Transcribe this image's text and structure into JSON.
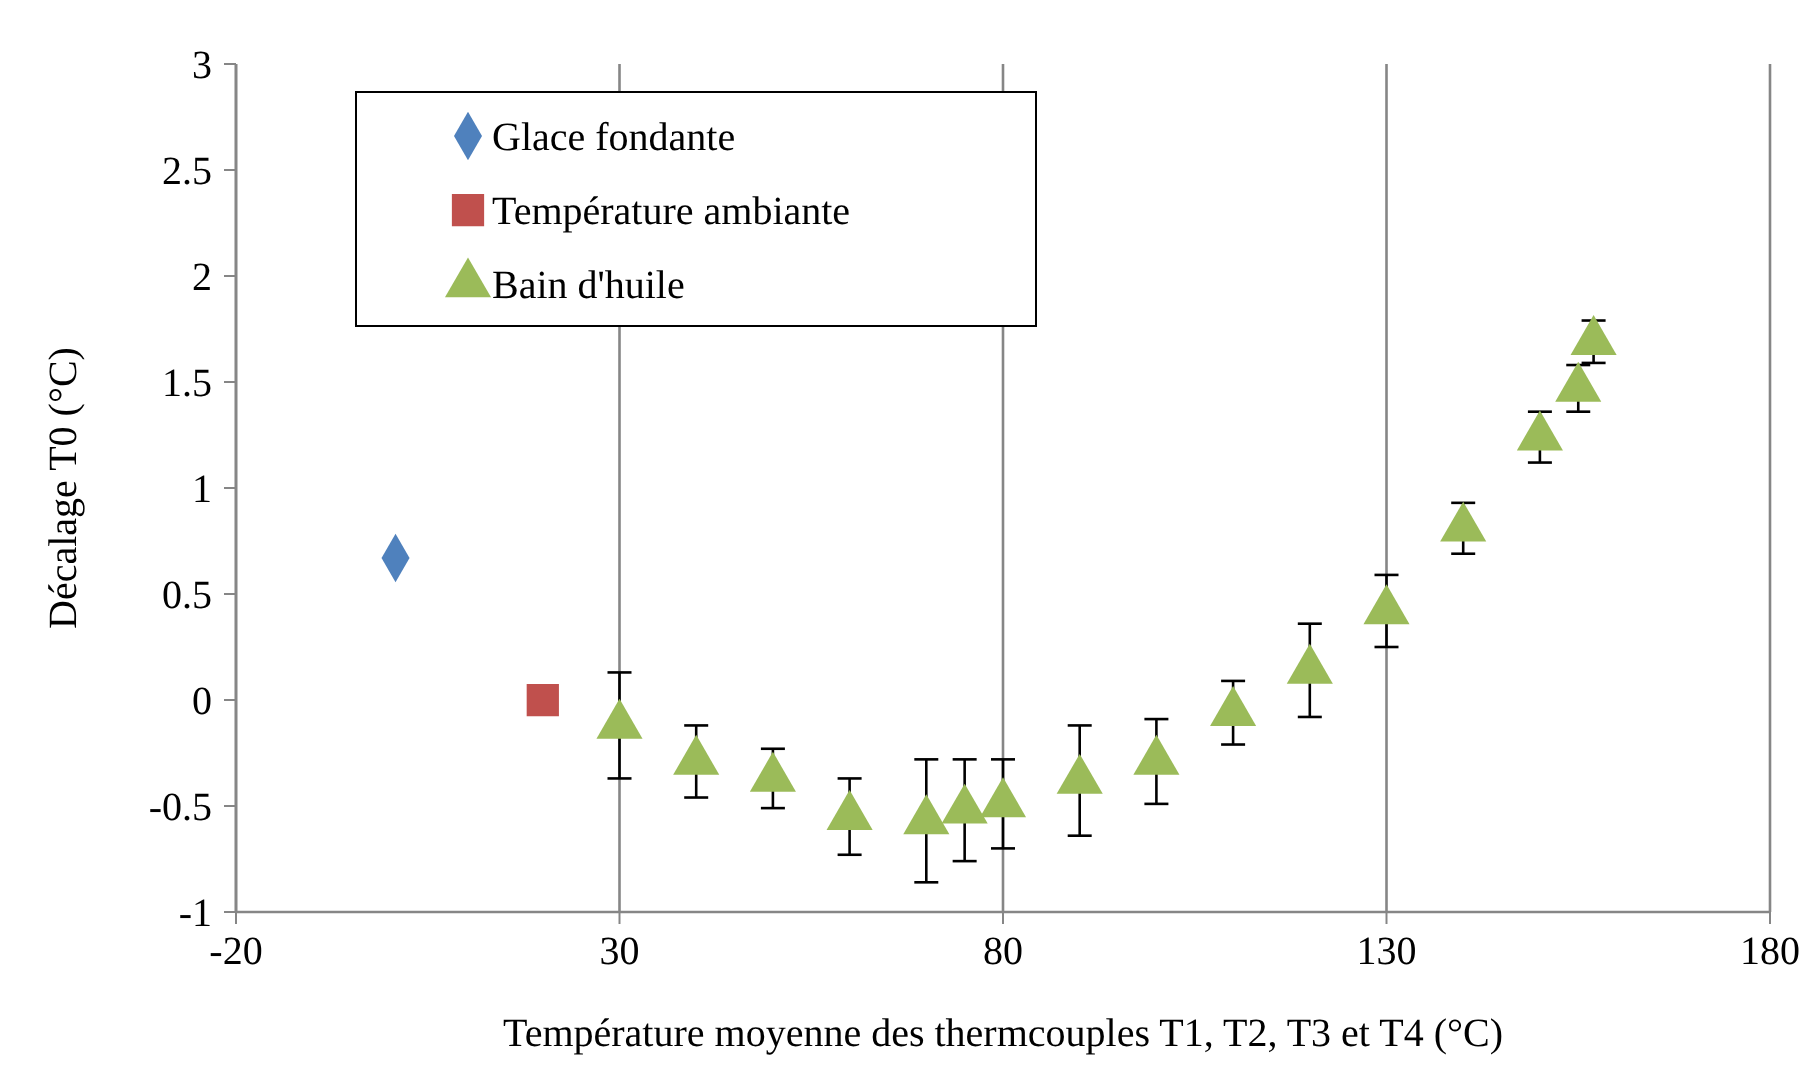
{
  "chart_data": {
    "type": "scatter",
    "xlabel": "Température moyenne des thermcouples T1, T2, T3 et T4 (°C)",
    "ylabel": "Décalage T0 (°C)",
    "xlim": [
      -20,
      180
    ],
    "xticks": [
      -20,
      30,
      80,
      130,
      180
    ],
    "ylim": [
      -1,
      3
    ],
    "yticks": [
      -1,
      -0.5,
      0,
      0.5,
      1,
      1.5,
      2,
      2.5,
      3
    ],
    "grid": "x",
    "legend": "top left",
    "series": [
      {
        "name": "Glace fondante",
        "color": "#4f81bd",
        "marker": "diamond",
        "x": [
          0.8
        ],
        "values": [
          0.67
        ]
      },
      {
        "name": "Température ambiante",
        "color": "#c0504d",
        "marker": "square",
        "x": [
          20
        ],
        "values": [
          0
        ]
      },
      {
        "name": "Bain d'huile",
        "color": "#9bbb59",
        "marker": "triangle",
        "x": [
          30,
          40,
          50,
          60,
          70,
          75,
          80,
          90,
          100,
          110,
          120,
          130,
          140,
          150,
          155,
          157
        ],
        "values": [
          -0.12,
          -0.29,
          -0.37,
          -0.55,
          -0.57,
          -0.52,
          -0.49,
          -0.38,
          -0.29,
          -0.06,
          0.14,
          0.42,
          0.81,
          1.24,
          1.47,
          1.69
        ],
        "errors": [
          0.25,
          0.17,
          0.14,
          0.18,
          0.29,
          0.24,
          0.21,
          0.26,
          0.2,
          0.15,
          0.22,
          0.17,
          0.12,
          0.12,
          0.11,
          0.1
        ]
      }
    ]
  }
}
